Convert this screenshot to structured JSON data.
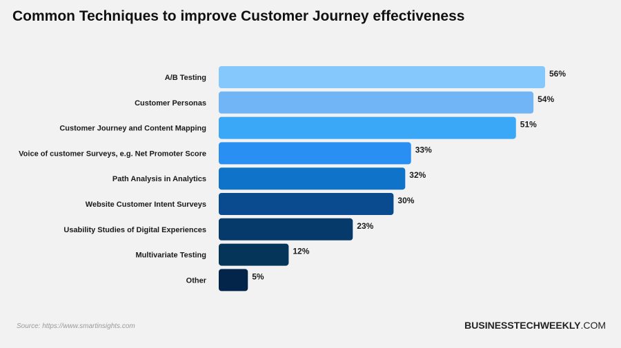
{
  "title": "Common Techniques to improve Customer Journey effectiveness",
  "source": "Source: https://www.smartinsights.com",
  "brand": {
    "bold": "BUSINESSTECHWEEKLY",
    "light": ".COM"
  },
  "chart_data": {
    "type": "bar",
    "orientation": "horizontal",
    "title": "Common Techniques to improve Customer Journey effectiveness",
    "xlabel": "",
    "ylabel": "",
    "xlim": [
      0,
      60
    ],
    "categories": [
      "A/B Testing",
      "Customer Personas",
      "Customer Journey and Content Mapping",
      "Voice of customer Surveys, e.g. Net Promoter Score",
      "Path Analysis in Analytics",
      "Website Customer Intent Surveys",
      "Usability Studies of Digital Experiences",
      "Multivariate Testing",
      "Other"
    ],
    "values": [
      56,
      54,
      51,
      33,
      32,
      30,
      23,
      12,
      5
    ],
    "value_labels": [
      "56%",
      "54%",
      "51%",
      "33%",
      "32%",
      "30%",
      "23%",
      "12%",
      "5%"
    ],
    "colors": [
      "#85c8fb",
      "#72b5f7",
      "#3aa7f7",
      "#2a8ff3",
      "#0e73c9",
      "#0a4a8f",
      "#063a6b",
      "#053558",
      "#04254a"
    ],
    "grid": false,
    "legend": "none"
  }
}
